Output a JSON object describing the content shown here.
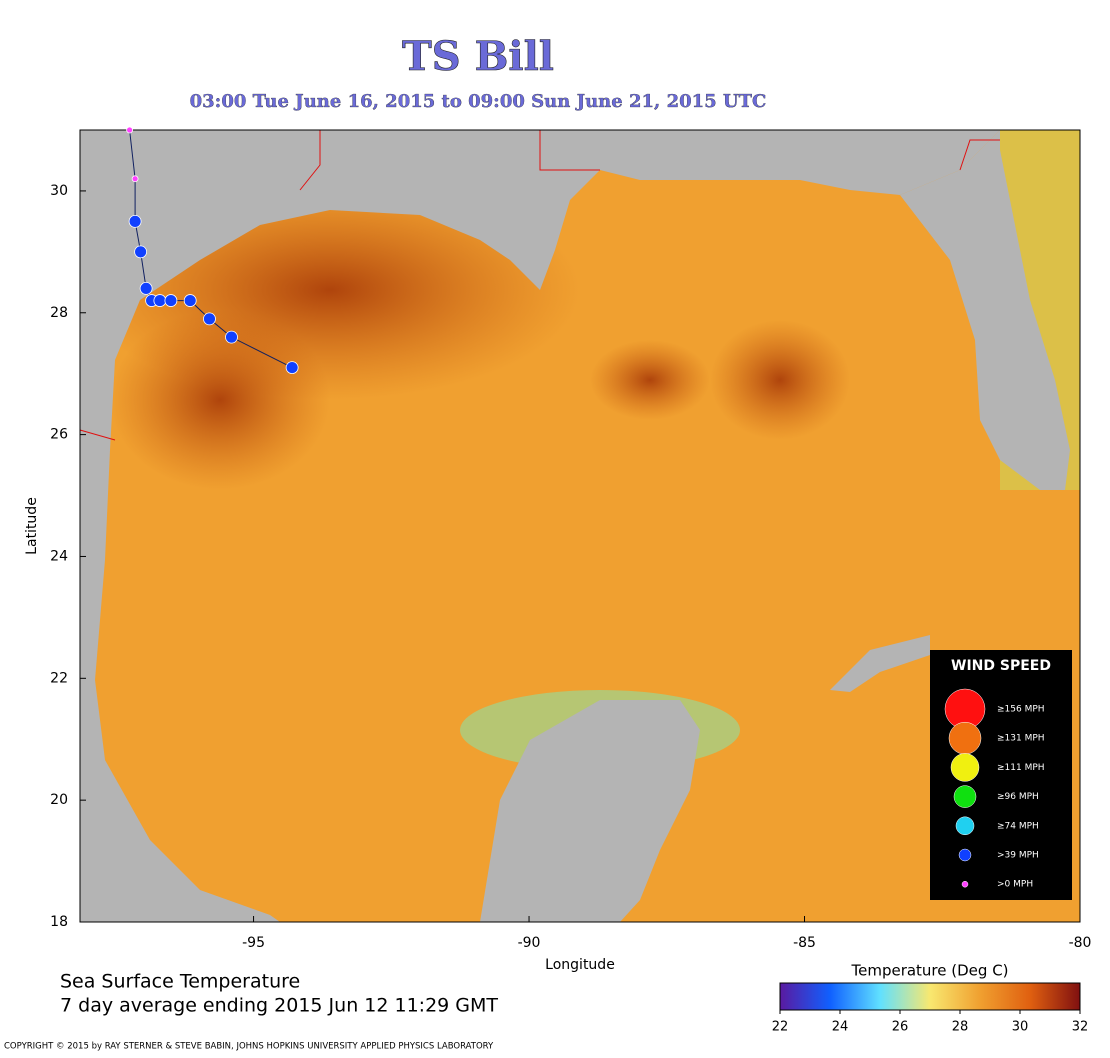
{
  "map": {
    "title": "TS Bill",
    "subtitle": "03:00 Tue June 16, 2015 to 09:00 Sun June 21, 2015  UTC",
    "xlabel": "Longitude",
    "ylabel": "Latitude",
    "xlim": [
      -98.15,
      -80
    ],
    "ylim": [
      18,
      31
    ],
    "xticks": [
      -95,
      -90,
      -85,
      -80
    ],
    "yticks": [
      18,
      20,
      22,
      24,
      26,
      28,
      30
    ],
    "track": {
      "lon": [
        -97.25,
        -97.15,
        -97.15,
        -97.05,
        -96.95,
        -96.85,
        -96.7,
        -96.5,
        -96.15,
        -95.8,
        -95.4,
        -94.3
      ],
      "lat": [
        31.0,
        30.2,
        29.5,
        29.0,
        28.4,
        28.2,
        28.2,
        28.2,
        28.2,
        27.9,
        27.6,
        27.1
      ],
      "colors": [
        "#ff40ff",
        "#ff40ff",
        "#1040ff",
        "#1040ff",
        "#1040ff",
        "#1040ff",
        "#1040ff",
        "#1040ff",
        "#1040ff",
        "#1040ff",
        "#1040ff",
        "#1040ff"
      ]
    },
    "legend": {
      "title": "WIND SPEED",
      "items": [
        {
          "label": "≥156 MPH",
          "color": "#ff1010"
        },
        {
          "label": "≥131 MPH",
          "color": "#f07010"
        },
        {
          "label": "≥111 MPH",
          "color": "#f0f010"
        },
        {
          "label": "≥96 MPH",
          "color": "#10e010"
        },
        {
          "label": "≥74 MPH",
          "color": "#20d0f0"
        },
        {
          "label": ">39 MPH",
          "color": "#1040ff"
        },
        {
          "label": ">0 MPH",
          "color": "#ff40ff"
        }
      ]
    },
    "caption": [
      "Sea Surface Temperature",
      "7 day average ending 2015 Jun 12 11:29 GMT"
    ],
    "colorbar": {
      "label": "Temperature (Deg C)",
      "lim": [
        22,
        32
      ],
      "ticks": [
        22,
        24,
        26,
        28,
        30,
        32
      ],
      "colors": [
        "#5a1aa0",
        "#1060ff",
        "#60e0ff",
        "#f8e870",
        "#f0a030",
        "#e06010",
        "#801010"
      ]
    },
    "copyright": "COPYRIGHT © 2015 by RAY STERNER & STEVE BABIN, JOHNS HOPKINS UNIVERSITY APPLIED PHYSICS LABORATORY"
  }
}
